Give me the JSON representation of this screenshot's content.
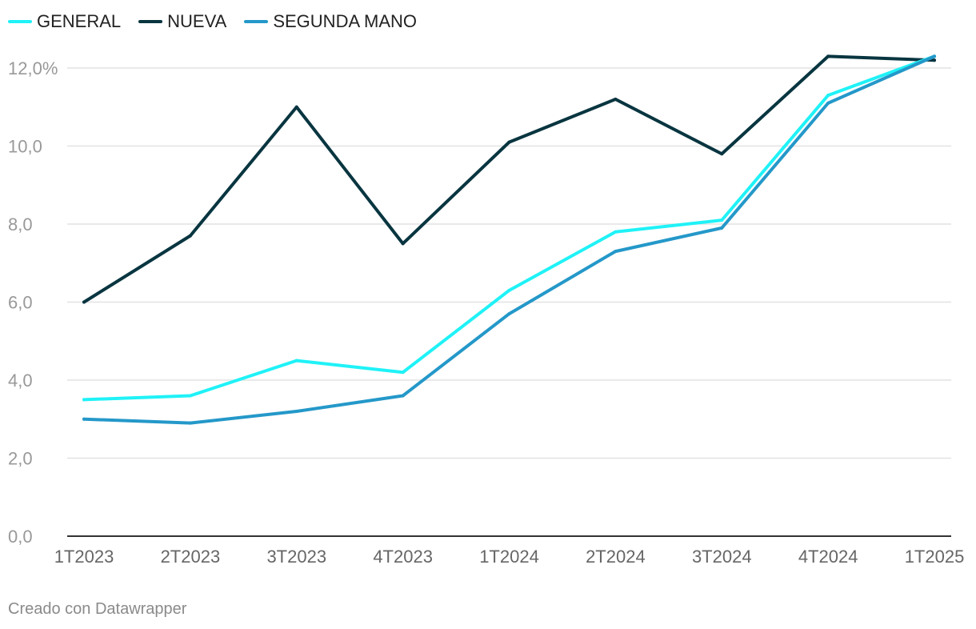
{
  "chart_data": {
    "type": "line",
    "categories": [
      "1T2023",
      "2T2023",
      "3T2023",
      "4T2023",
      "1T2024",
      "2T2024",
      "3T2024",
      "4T2024",
      "1T2025"
    ],
    "series": [
      {
        "name": "GENERAL",
        "color": "#1ff2f7",
        "values": [
          3.5,
          3.6,
          4.5,
          4.2,
          6.3,
          7.8,
          8.1,
          11.3,
          12.3
        ]
      },
      {
        "name": "NUEVA",
        "color": "#083540",
        "values": [
          6.0,
          7.7,
          11.0,
          7.5,
          10.1,
          11.2,
          9.8,
          12.3,
          12.2
        ]
      },
      {
        "name": "SEGUNDA MANO",
        "color": "#2498c9",
        "values": [
          3.0,
          2.9,
          3.2,
          3.6,
          5.7,
          7.3,
          7.9,
          11.1,
          12.3
        ]
      }
    ],
    "y_ticks": [
      "0,0",
      "2,0",
      "4,0",
      "6,0",
      "8,0",
      "10,0",
      "12,0%"
    ],
    "y_tick_values": [
      0,
      2,
      4,
      6,
      8,
      10,
      12
    ],
    "ylim": [
      0,
      12.5
    ],
    "grid": true,
    "legend_position": "top-left"
  },
  "footer": {
    "credit": "Creado con Datawrapper"
  }
}
